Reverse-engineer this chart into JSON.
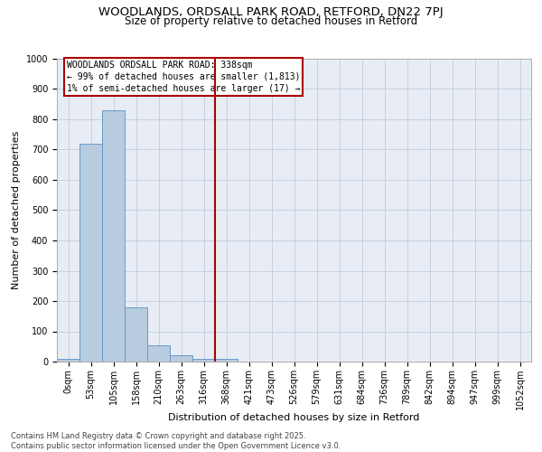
{
  "title1": "WOODLANDS, ORDSALL PARK ROAD, RETFORD, DN22 7PJ",
  "title2": "Size of property relative to detached houses in Retford",
  "xlabel": "Distribution of detached houses by size in Retford",
  "ylabel": "Number of detached properties",
  "bar_labels": [
    "0sqm",
    "53sqm",
    "105sqm",
    "158sqm",
    "210sqm",
    "263sqm",
    "316sqm",
    "368sqm",
    "421sqm",
    "473sqm",
    "526sqm",
    "579sqm",
    "631sqm",
    "684sqm",
    "736sqm",
    "789sqm",
    "842sqm",
    "894sqm",
    "947sqm",
    "999sqm",
    "1052sqm"
  ],
  "bar_values": [
    10,
    720,
    830,
    180,
    55,
    20,
    10,
    10,
    0,
    0,
    0,
    0,
    0,
    0,
    0,
    0,
    0,
    0,
    0,
    0,
    0
  ],
  "bar_color": "#b8ccdf",
  "bar_edge_color": "#6699cc",
  "vline_x": 6.5,
  "vline_color": "#aa0000",
  "annotation_text": "WOODLANDS ORDSALL PARK ROAD: 338sqm\n← 99% of detached houses are smaller (1,813)\n1% of semi-detached houses are larger (17) →",
  "annotation_box_color": "#aa0000",
  "ylim": [
    0,
    1000
  ],
  "yticks": [
    0,
    100,
    200,
    300,
    400,
    500,
    600,
    700,
    800,
    900,
    1000
  ],
  "grid_color": "#c8d0e0",
  "background_color": "#e8edf5",
  "footer_text": "Contains HM Land Registry data © Crown copyright and database right 2025.\nContains public sector information licensed under the Open Government Licence v3.0.",
  "title_fontsize": 9.5,
  "subtitle_fontsize": 8.5,
  "tick_fontsize": 7,
  "xlabel_fontsize": 8,
  "ylabel_fontsize": 8,
  "annotation_fontsize": 7,
  "footer_fontsize": 6
}
